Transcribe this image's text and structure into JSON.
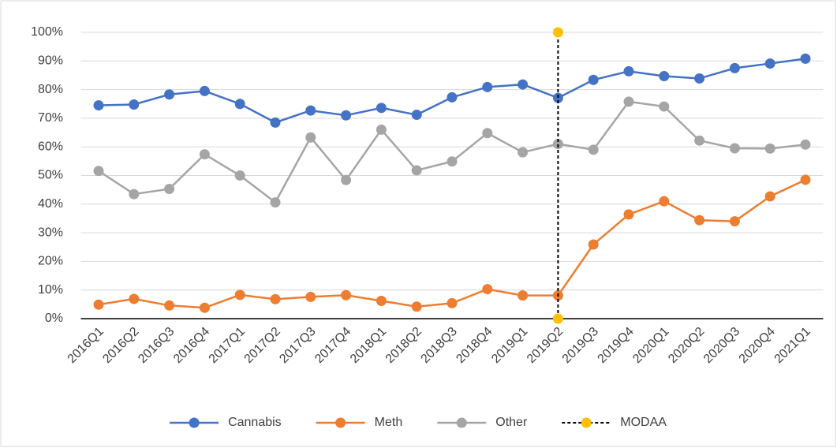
{
  "chart_data": {
    "type": "line",
    "categories": [
      "2016Q1",
      "2016Q2",
      "2016Q3",
      "2016Q4",
      "2017Q1",
      "2017Q2",
      "2017Q3",
      "2017Q4",
      "2018Q1",
      "2018Q2",
      "2018Q3",
      "2018Q4",
      "2019Q1",
      "2019Q2",
      "2019Q3",
      "2019Q4",
      "2020Q1",
      "2020Q2",
      "2020Q3",
      "2020Q4",
      "2021Q1"
    ],
    "series": [
      {
        "name": "Cannabis",
        "color": "#4472c4",
        "values": [
          74.5,
          74.8,
          78.3,
          79.5,
          75,
          68.5,
          72.7,
          71,
          73.6,
          71.2,
          77.3,
          80.9,
          81.8,
          77.1,
          83.4,
          86.4,
          84.7,
          83.9,
          87.5,
          89.1,
          90.8
        ]
      },
      {
        "name": "Meth",
        "color": "#ed7d31",
        "values": [
          4.9,
          6.9,
          4.6,
          3.8,
          8.3,
          6.8,
          7.6,
          8.2,
          6.2,
          4.2,
          5.4,
          10.3,
          8.1,
          8.1,
          25.9,
          36.4,
          41,
          34.4,
          34,
          42.7,
          48.5
        ]
      },
      {
        "name": "Other",
        "color": "#a5a5a5",
        "values": [
          51.6,
          43.5,
          45.3,
          57.4,
          50,
          40.6,
          63.3,
          48.4,
          66,
          51.8,
          54.9,
          64.8,
          58.1,
          61,
          59,
          75.8,
          74.1,
          62.2,
          59.5,
          59.4,
          60.8
        ]
      },
      {
        "name": "MODAA",
        "color": "#ffc000",
        "line_color": "#000000",
        "dashed": true,
        "x": [
          "2019Q2",
          "2019Q2"
        ],
        "values": [
          0,
          100
        ]
      }
    ],
    "ylim": [
      0,
      100
    ],
    "yticks": [
      {
        "value": 0,
        "label": "0%"
      },
      {
        "value": 10,
        "label": "10%"
      },
      {
        "value": 20,
        "label": "20%"
      },
      {
        "value": 30,
        "label": "30%"
      },
      {
        "value": 40,
        "label": "40%"
      },
      {
        "value": 50,
        "label": "50%"
      },
      {
        "value": 60,
        "label": "60%"
      },
      {
        "value": 70,
        "label": "70%"
      },
      {
        "value": 80,
        "label": "80%"
      },
      {
        "value": 90,
        "label": "90%"
      },
      {
        "value": 100,
        "label": "100%"
      }
    ],
    "grid": true,
    "legend": "bottom"
  }
}
